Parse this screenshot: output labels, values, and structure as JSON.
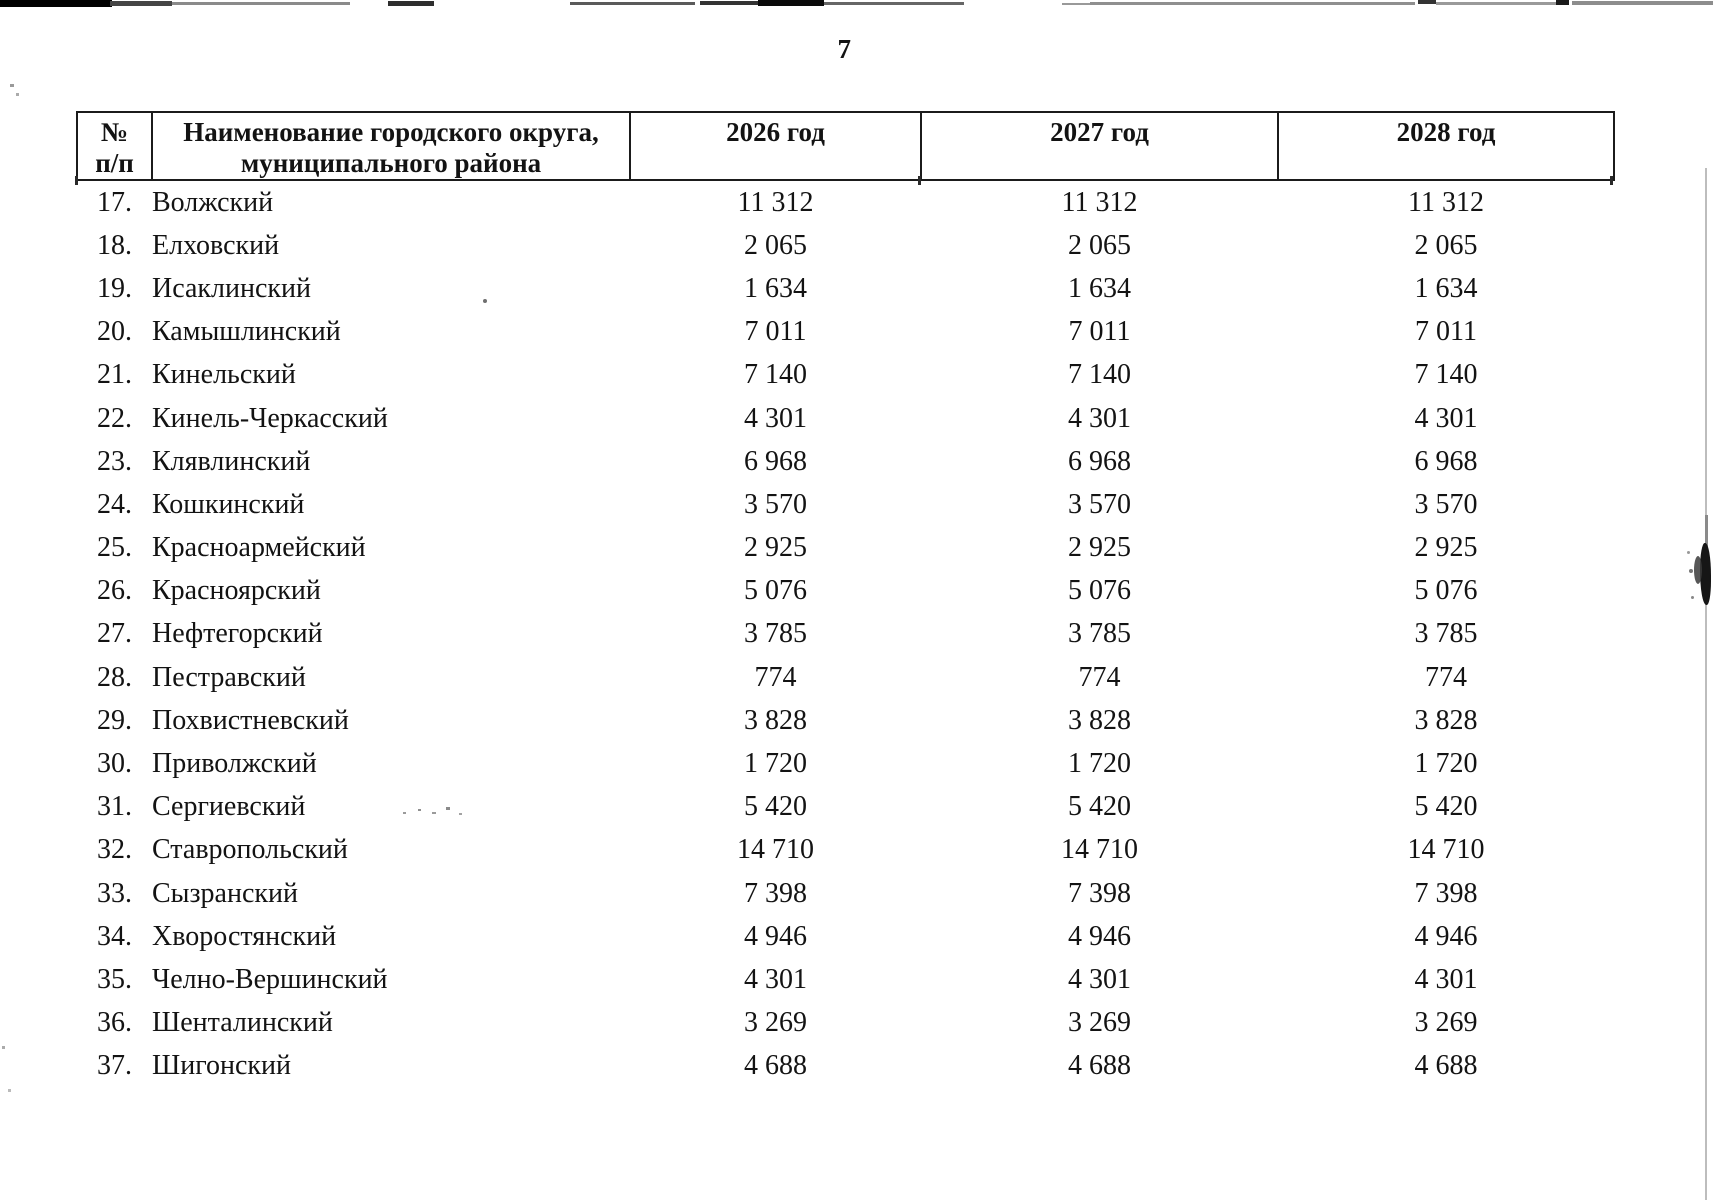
{
  "page_number": "7",
  "table": {
    "header": {
      "col_num_line1": "№",
      "col_num_line2": "п/п",
      "col_name_line1": "Наименование городского округа,",
      "col_name_line2": "муниципального района",
      "year_2026": "2026 год",
      "year_2027": "2027 год",
      "year_2028": "2028 год"
    },
    "rows": [
      {
        "num": "17.",
        "name": "Волжский",
        "values": [
          "11 312",
          "11 312",
          "11 312"
        ]
      },
      {
        "num": "18.",
        "name": "Елховский",
        "values": [
          "2 065",
          "2 065",
          "2 065"
        ]
      },
      {
        "num": "19.",
        "name": "Исаклинский",
        "values": [
          "1 634",
          "1 634",
          "1 634"
        ]
      },
      {
        "num": "20.",
        "name": "Камышлинский",
        "values": [
          "7 011",
          "7 011",
          "7 011"
        ]
      },
      {
        "num": "21.",
        "name": "Кинельский",
        "values": [
          "7 140",
          "7 140",
          "7 140"
        ]
      },
      {
        "num": "22.",
        "name": "Кинель-Черкасский",
        "values": [
          "4 301",
          "4 301",
          "4 301"
        ]
      },
      {
        "num": "23.",
        "name": "Клявлинский",
        "values": [
          "6 968",
          "6 968",
          "6 968"
        ]
      },
      {
        "num": "24.",
        "name": "Кошкинский",
        "values": [
          "3 570",
          "3 570",
          "3 570"
        ]
      },
      {
        "num": "25.",
        "name": "Красноармейский",
        "values": [
          "2 925",
          "2 925",
          "2 925"
        ]
      },
      {
        "num": "26.",
        "name": "Красноярский",
        "values": [
          "5 076",
          "5 076",
          "5 076"
        ]
      },
      {
        "num": "27.",
        "name": "Нефтегорский",
        "values": [
          "3 785",
          "3 785",
          "3 785"
        ]
      },
      {
        "num": "28.",
        "name": "Пестравский",
        "values": [
          "774",
          "774",
          "774"
        ]
      },
      {
        "num": "29.",
        "name": "Похвистневский",
        "values": [
          "3 828",
          "3 828",
          "3 828"
        ]
      },
      {
        "num": "30.",
        "name": "Приволжский",
        "values": [
          "1 720",
          "1 720",
          "1 720"
        ]
      },
      {
        "num": "31.",
        "name": "Сергиевский",
        "values": [
          "5 420",
          "5 420",
          "5 420"
        ]
      },
      {
        "num": "32.",
        "name": "Ставропольский",
        "values": [
          "14 710",
          "14 710",
          "14 710"
        ]
      },
      {
        "num": "33.",
        "name": "Сызранский",
        "values": [
          "7 398",
          "7 398",
          "7 398"
        ]
      },
      {
        "num": "34.",
        "name": "Хворостянский",
        "values": [
          "4 946",
          "4 946",
          "4 946"
        ]
      },
      {
        "num": "35.",
        "name": "Челно-Вершинский",
        "values": [
          "4 301",
          "4 301",
          "4 301"
        ]
      },
      {
        "num": "36.",
        "name": "Шенталинский",
        "values": [
          "3 269",
          "3 269",
          "3 269"
        ]
      },
      {
        "num": "37.",
        "name": "Шигонский",
        "values": [
          "4 688",
          "4 688",
          "4 688"
        ]
      }
    ]
  }
}
